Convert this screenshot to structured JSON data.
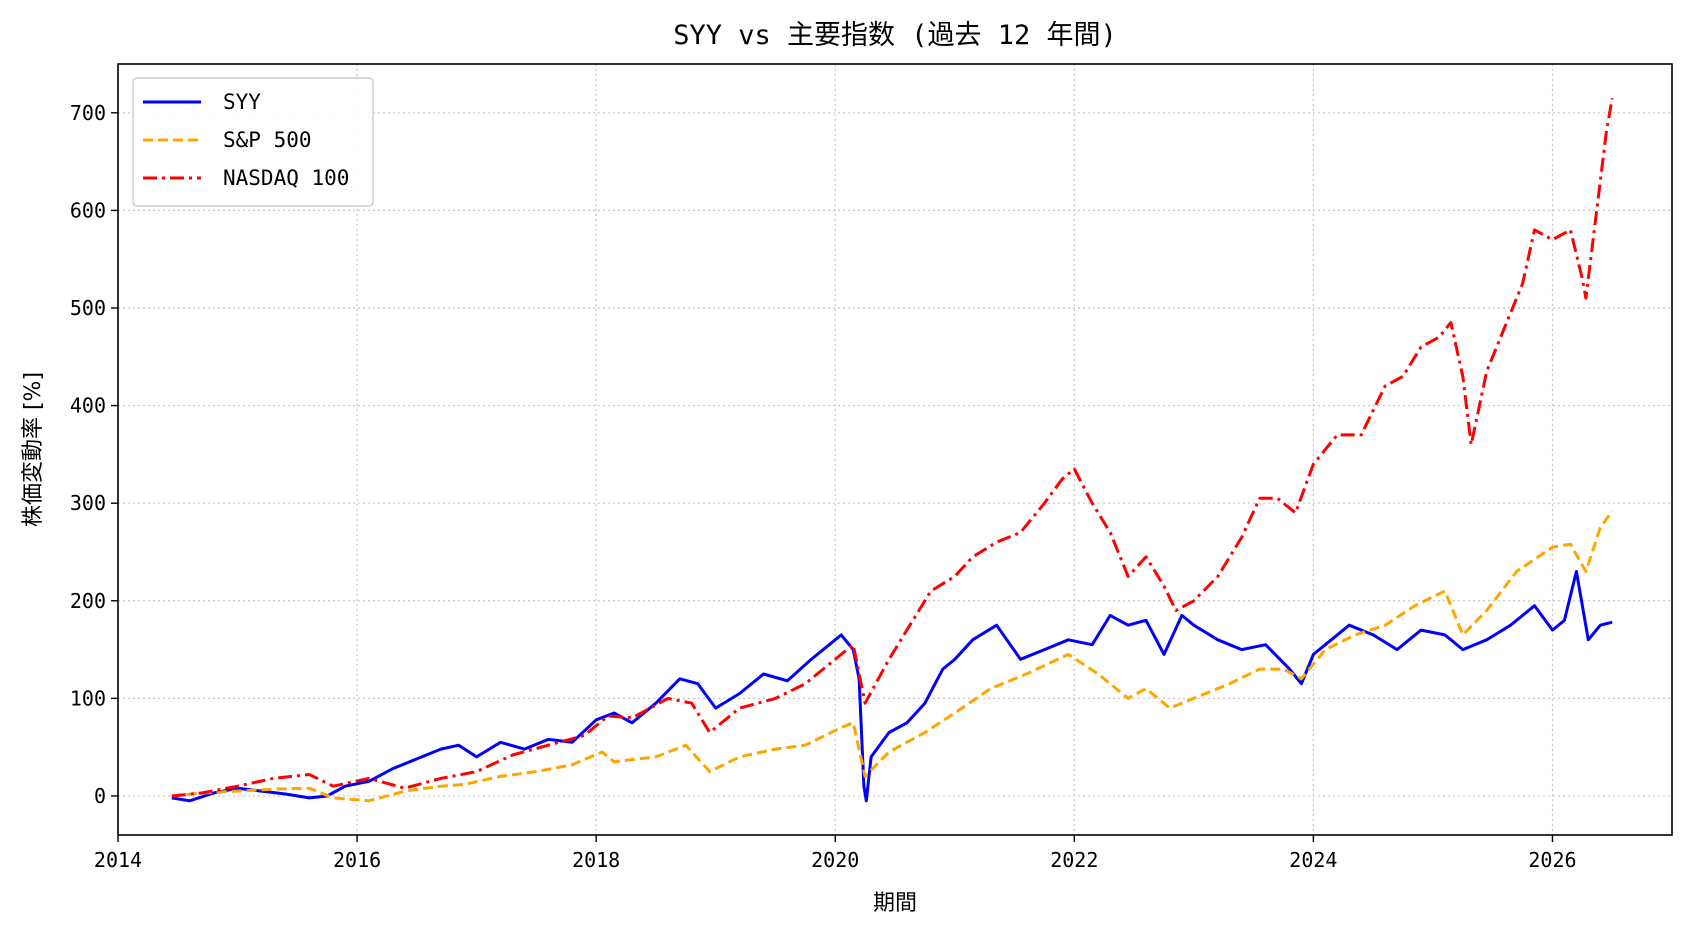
{
  "chart_data": {
    "type": "line",
    "title": "SYY vs 主要指数 (過去 12 年間)",
    "xlabel": "期間",
    "ylabel": "株価変動率 [%]",
    "xlim": [
      2014.0,
      2027.0
    ],
    "ylim": [
      -40,
      750
    ],
    "x_ticks": [
      2014,
      2016,
      2018,
      2020,
      2022,
      2024,
      2026
    ],
    "y_ticks": [
      0,
      100,
      200,
      300,
      400,
      500,
      600,
      700
    ],
    "grid": true,
    "legend_position": "top-left",
    "series": [
      {
        "name": "SYY",
        "color": "#0000ff",
        "style": "solid",
        "points": [
          [
            2014.45,
            -2
          ],
          [
            2014.6,
            -5
          ],
          [
            2014.8,
            3
          ],
          [
            2015.0,
            8
          ],
          [
            2015.2,
            5
          ],
          [
            2015.4,
            2
          ],
          [
            2015.6,
            -2
          ],
          [
            2015.75,
            0
          ],
          [
            2015.9,
            10
          ],
          [
            2016.1,
            15
          ],
          [
            2016.3,
            28
          ],
          [
            2016.5,
            38
          ],
          [
            2016.7,
            48
          ],
          [
            2016.85,
            52
          ],
          [
            2017.0,
            40
          ],
          [
            2017.2,
            55
          ],
          [
            2017.4,
            48
          ],
          [
            2017.6,
            58
          ],
          [
            2017.8,
            55
          ],
          [
            2018.0,
            78
          ],
          [
            2018.15,
            85
          ],
          [
            2018.3,
            75
          ],
          [
            2018.5,
            95
          ],
          [
            2018.7,
            120
          ],
          [
            2018.85,
            115
          ],
          [
            2019.0,
            90
          ],
          [
            2019.2,
            105
          ],
          [
            2019.4,
            125
          ],
          [
            2019.6,
            118
          ],
          [
            2019.8,
            140
          ],
          [
            2019.95,
            155
          ],
          [
            2020.05,
            165
          ],
          [
            2020.15,
            150
          ],
          [
            2020.2,
            120
          ],
          [
            2020.24,
            10
          ],
          [
            2020.26,
            -5
          ],
          [
            2020.3,
            40
          ],
          [
            2020.45,
            65
          ],
          [
            2020.6,
            75
          ],
          [
            2020.75,
            95
          ],
          [
            2020.9,
            130
          ],
          [
            2021.0,
            140
          ],
          [
            2021.15,
            160
          ],
          [
            2021.35,
            175
          ],
          [
            2021.55,
            140
          ],
          [
            2021.75,
            150
          ],
          [
            2021.95,
            160
          ],
          [
            2022.15,
            155
          ],
          [
            2022.3,
            185
          ],
          [
            2022.45,
            175
          ],
          [
            2022.6,
            180
          ],
          [
            2022.75,
            145
          ],
          [
            2022.9,
            185
          ],
          [
            2023.0,
            175
          ],
          [
            2023.2,
            160
          ],
          [
            2023.4,
            150
          ],
          [
            2023.6,
            155
          ],
          [
            2023.8,
            130
          ],
          [
            2023.9,
            115
          ],
          [
            2024.0,
            145
          ],
          [
            2024.15,
            160
          ],
          [
            2024.3,
            175
          ],
          [
            2024.5,
            165
          ],
          [
            2024.7,
            150
          ],
          [
            2024.9,
            170
          ],
          [
            2025.1,
            165
          ],
          [
            2025.25,
            150
          ],
          [
            2025.45,
            160
          ],
          [
            2025.65,
            175
          ],
          [
            2025.85,
            195
          ],
          [
            2026.0,
            170
          ],
          [
            2026.1,
            180
          ],
          [
            2026.2,
            230
          ],
          [
            2026.3,
            160
          ],
          [
            2026.4,
            175
          ],
          [
            2026.5,
            178
          ]
        ]
      },
      {
        "name": "S&P 500",
        "color": "#ffa500",
        "style": "dashed",
        "points": [
          [
            2014.45,
            0
          ],
          [
            2014.7,
            3
          ],
          [
            2015.0,
            5
          ],
          [
            2015.3,
            7
          ],
          [
            2015.6,
            8
          ],
          [
            2015.8,
            -2
          ],
          [
            2016.1,
            -5
          ],
          [
            2016.4,
            5
          ],
          [
            2016.7,
            10
          ],
          [
            2016.9,
            12
          ],
          [
            2017.2,
            20
          ],
          [
            2017.5,
            25
          ],
          [
            2017.8,
            32
          ],
          [
            2018.05,
            45
          ],
          [
            2018.15,
            35
          ],
          [
            2018.5,
            40
          ],
          [
            2018.75,
            52
          ],
          [
            2018.95,
            25
          ],
          [
            2019.2,
            40
          ],
          [
            2019.5,
            48
          ],
          [
            2019.75,
            52
          ],
          [
            2020.05,
            70
          ],
          [
            2020.15,
            75
          ],
          [
            2020.25,
            20
          ],
          [
            2020.45,
            45
          ],
          [
            2020.75,
            65
          ],
          [
            2021.0,
            85
          ],
          [
            2021.3,
            110
          ],
          [
            2021.6,
            125
          ],
          [
            2021.95,
            145
          ],
          [
            2022.2,
            125
          ],
          [
            2022.45,
            100
          ],
          [
            2022.6,
            110
          ],
          [
            2022.8,
            90
          ],
          [
            2023.0,
            100
          ],
          [
            2023.3,
            115
          ],
          [
            2023.55,
            130
          ],
          [
            2023.75,
            130
          ],
          [
            2023.9,
            120
          ],
          [
            2024.1,
            150
          ],
          [
            2024.35,
            165
          ],
          [
            2024.6,
            175
          ],
          [
            2024.85,
            195
          ],
          [
            2025.1,
            210
          ],
          [
            2025.25,
            165
          ],
          [
            2025.45,
            190
          ],
          [
            2025.7,
            230
          ],
          [
            2026.0,
            255
          ],
          [
            2026.15,
            258
          ],
          [
            2026.28,
            230
          ],
          [
            2026.4,
            275
          ],
          [
            2026.5,
            292
          ]
        ]
      },
      {
        "name": "NASDAQ 100",
        "color": "#ff0000",
        "style": "dashdot",
        "points": [
          [
            2014.45,
            0
          ],
          [
            2014.7,
            3
          ],
          [
            2015.0,
            10
          ],
          [
            2015.3,
            18
          ],
          [
            2015.6,
            22
          ],
          [
            2015.8,
            10
          ],
          [
            2016.1,
            18
          ],
          [
            2016.4,
            8
          ],
          [
            2016.7,
            18
          ],
          [
            2017.0,
            25
          ],
          [
            2017.3,
            42
          ],
          [
            2017.6,
            52
          ],
          [
            2017.9,
            62
          ],
          [
            2018.1,
            82
          ],
          [
            2018.3,
            80
          ],
          [
            2018.6,
            100
          ],
          [
            2018.8,
            95
          ],
          [
            2018.95,
            65
          ],
          [
            2019.2,
            90
          ],
          [
            2019.5,
            100
          ],
          [
            2019.75,
            115
          ],
          [
            2020.05,
            145
          ],
          [
            2020.15,
            155
          ],
          [
            2020.25,
            95
          ],
          [
            2020.45,
            140
          ],
          [
            2020.65,
            180
          ],
          [
            2020.8,
            210
          ],
          [
            2021.0,
            225
          ],
          [
            2021.15,
            245
          ],
          [
            2021.35,
            260
          ],
          [
            2021.55,
            270
          ],
          [
            2021.75,
            300
          ],
          [
            2021.9,
            325
          ],
          [
            2022.0,
            335
          ],
          [
            2022.15,
            300
          ],
          [
            2022.3,
            270
          ],
          [
            2022.45,
            225
          ],
          [
            2022.6,
            245
          ],
          [
            2022.75,
            215
          ],
          [
            2022.85,
            190
          ],
          [
            2023.0,
            200
          ],
          [
            2023.2,
            225
          ],
          [
            2023.4,
            265
          ],
          [
            2023.55,
            305
          ],
          [
            2023.7,
            305
          ],
          [
            2023.85,
            290
          ],
          [
            2024.0,
            340
          ],
          [
            2024.2,
            370
          ],
          [
            2024.4,
            370
          ],
          [
            2024.6,
            420
          ],
          [
            2024.75,
            430
          ],
          [
            2024.9,
            460
          ],
          [
            2025.05,
            470
          ],
          [
            2025.15,
            485
          ],
          [
            2025.25,
            430
          ],
          [
            2025.32,
            360
          ],
          [
            2025.45,
            435
          ],
          [
            2025.6,
            480
          ],
          [
            2025.75,
            525
          ],
          [
            2025.85,
            580
          ],
          [
            2026.0,
            570
          ],
          [
            2026.15,
            580
          ],
          [
            2026.25,
            530
          ],
          [
            2026.28,
            510
          ],
          [
            2026.35,
            580
          ],
          [
            2026.45,
            680
          ],
          [
            2026.5,
            715
          ]
        ]
      }
    ]
  }
}
